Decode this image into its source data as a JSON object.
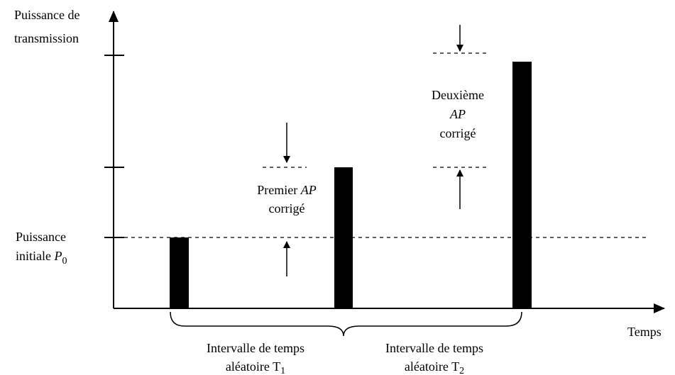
{
  "y_axis_label": {
    "line1": "Puissance de",
    "line2": "transmission"
  },
  "initial_power_label": {
    "line1": "Puissance",
    "line2": "initiale",
    "symbol": "P",
    "subscript": "0"
  },
  "first_correction": {
    "word": "Premier",
    "symbol": "AP",
    "line2": "corrigé"
  },
  "second_correction": {
    "line1": "Deuxième",
    "symbol": "AP",
    "line3": "corrigé"
  },
  "x_axis_label": "Temps",
  "interval_1": {
    "line1": "Intervalle de temps",
    "line2": "aléatoire",
    "symbol": "T",
    "subscript": "1"
  },
  "interval_2": {
    "line1": "Intervalle de temps",
    "line2": "aléatoire",
    "symbol": "T",
    "subscript": "2"
  }
}
